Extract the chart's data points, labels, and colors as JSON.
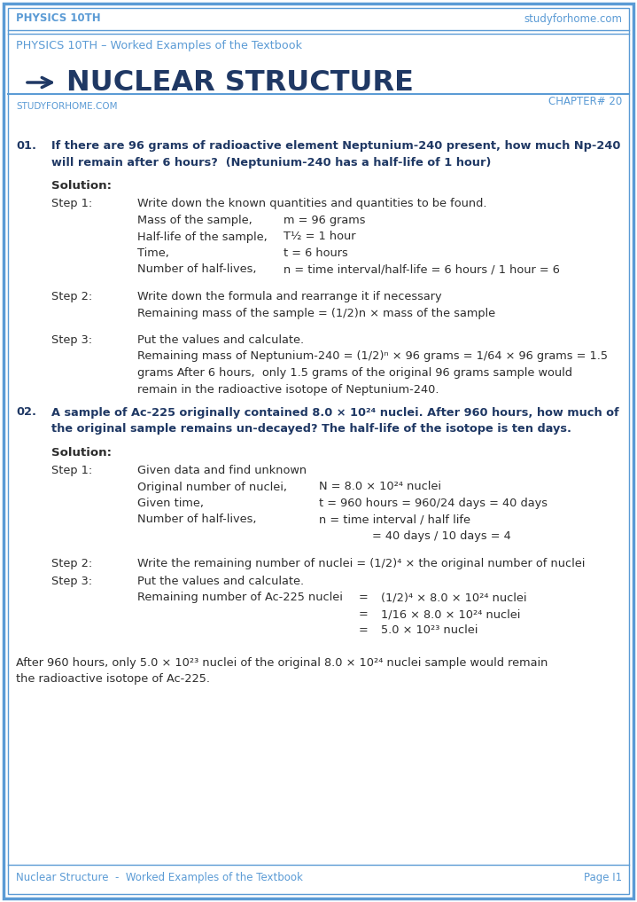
{
  "page_bg": "#ffffff",
  "outer_border_color": "#5b9bd5",
  "inner_border_color": "#5b9bd5",
  "header_text_left": "PHYSICS 10TH",
  "header_text_right": "studyforhome.com",
  "header_text_color": "#5b9bd5",
  "subtitle_text": "PHYSICS 10TH – Worked Examples of the Textbook",
  "subtitle_color": "#5b9bd5",
  "title_text": "NUCLEAR STRUCTURE",
  "title_color": "#1f3864",
  "chapter_text": "CHAPTER# 20",
  "chapter_color": "#5b9bd5",
  "watermark_text": "studyforhome.com",
  "watermark_color": "#c8c8c8",
  "divider_color": "#5b9bd5",
  "studyforhome_label": "STUDYFORHOME.COM",
  "studyforhome_label_color": "#5b9bd5",
  "question_color": "#1f3864",
  "body_color": "#2d2d2d",
  "footer_left": "Nuclear Structure  -  Worked Examples of the Textbook",
  "footer_right": "Page I1",
  "footer_color": "#5b9bd5",
  "arrow_color": "#1f3864",
  "q1_number": "01.",
  "q1_text_line1": "If there are 96 grams of radioactive element Neptunium-240 present, how much Np-240",
  "q1_text_line2": "will remain after 6 hours?  (Neptunium-240 has a half-life of 1 hour)",
  "q1_solution_label": "Solution:",
  "q1_step1_label": "Step 1:",
  "q1_step1_line1": "Write down the known quantities and quantities to be found.",
  "q1_step1_line2_l": "Mass of the sample,",
  "q1_step1_line2_r": "m = 96 grams",
  "q1_step1_line3_l": "Half-life of the sample,",
  "q1_step1_line3_r": "T½ = 1 hour",
  "q1_step1_line4_l": "Time,",
  "q1_step1_line4_r": "t = 6 hours",
  "q1_step1_line5_l": "Number of half-lives,",
  "q1_step1_line5_r": "n = time interval/half-life = 6 hours / 1 hour = 6",
  "q1_step2_label": "Step 2:",
  "q1_step2_line1": "Write down the formula and rearrange it if necessary",
  "q1_step2_line2": "Remaining mass of the sample = (1/2)n × mass of the sample",
  "q1_step3_label": "Step 3:",
  "q1_step3_line1": "Put the values and calculate.",
  "q1_step3_line2": "Remaining mass of Neptunium-240 = (1/2)ⁿ × 96 grams = 1/64 × 96 grams = 1.5",
  "q1_step3_line3": "grams After 6 hours,  only 1.5 grams of the original 96 grams sample would",
  "q1_step3_line4": "remain in the radioactive isotope of Neptunium-240.",
  "q2_number": "02.",
  "q2_text_line1": "A sample of Ac-225 originally contained 8.0 × 10²⁴ nuclei. After 960 hours, how much of",
  "q2_text_line2": "the original sample remains un-decayed? The half-life of the isotope is ten days.",
  "q2_solution_label": "Solution:",
  "q2_step1_label": "Step 1:",
  "q2_step1_line1": "Given data and find unknown",
  "q2_step1_line2_l": "Original number of nuclei,",
  "q2_step1_line2_r": "N = 8.0 × 10²⁴ nuclei",
  "q2_step1_line3_l": "Given time,",
  "q2_step1_line3_r": "t = 960 hours = 960/24 days = 40 days",
  "q2_step1_line4_l": "Number of half-lives,",
  "q2_step1_line4_r": "n = time interval / half life",
  "q2_step1_line5_r": "= 40 days / 10 days = 4",
  "q2_step2_label": "Step 2:",
  "q2_step2_line1": "Write the remaining number of nuclei = (1/2)⁴ × the original number of nuclei",
  "q2_step3_label": "Step 3:",
  "q2_step3_line1": "Put the values and calculate.",
  "q2_step3_line2_l": "Remaining number of Ac-225 nuclei",
  "q2_step3_line2_m": "=",
  "q2_step3_line2_r": "(1/2)⁴ × 8.0 × 10²⁴ nuclei",
  "q2_step3_line3_m": "=",
  "q2_step3_line3_r": "1/16 × 8.0 × 10²⁴ nuclei",
  "q2_step3_line4_m": "=",
  "q2_step3_line4_r": "5.0 × 10²³ nuclei",
  "q2_final_line1": "After 960 hours, only 5.0 × 10²³ nuclei of the original 8.0 × 10²⁴ nuclei sample would remain",
  "q2_final_line2": "the radioactive isotope of Ac-225."
}
